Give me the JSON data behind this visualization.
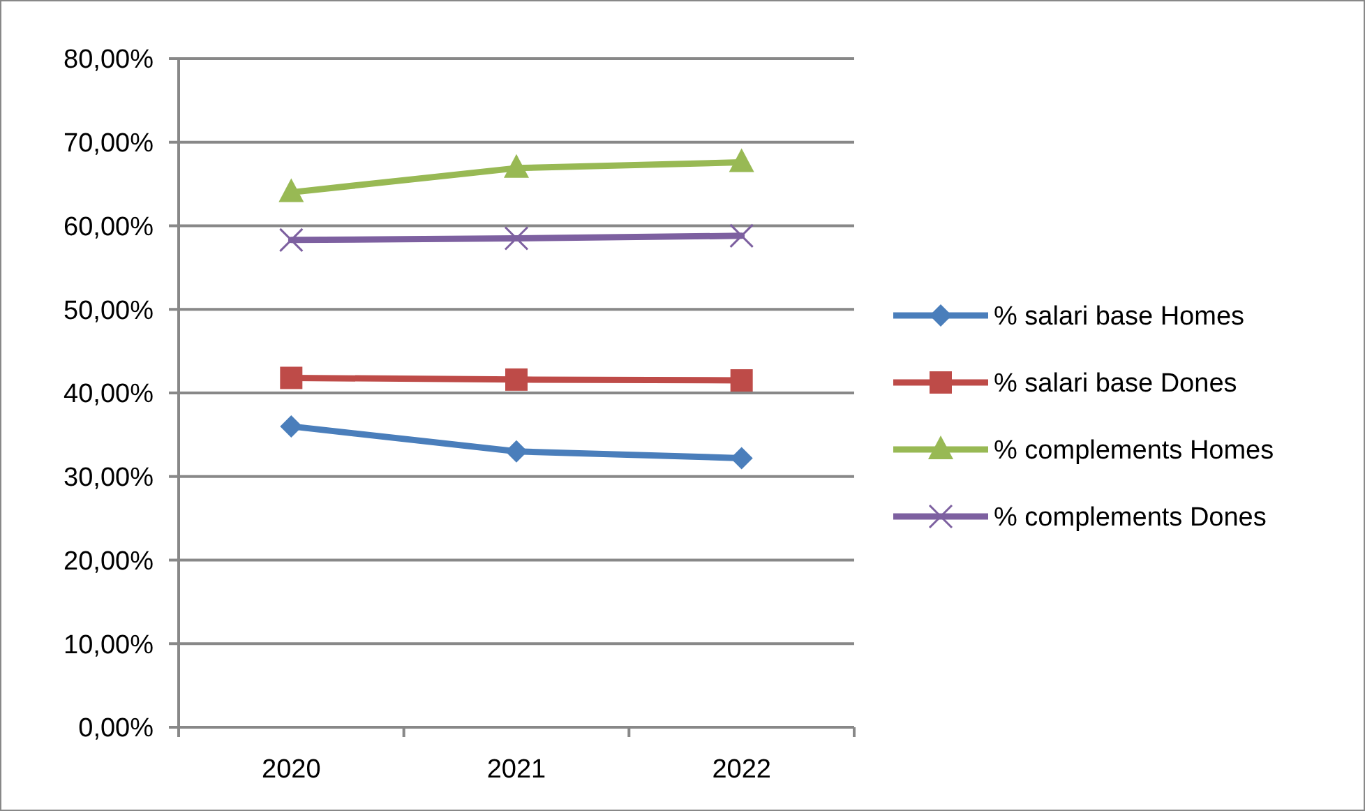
{
  "chart_data": {
    "type": "line",
    "categories": [
      "2020",
      "2021",
      "2022"
    ],
    "series": [
      {
        "name": "% salari base Homes",
        "color": "#4a7ebb",
        "marker": "diamond",
        "values": [
          36.0,
          33.0,
          32.2
        ]
      },
      {
        "name": "% salari base Dones",
        "color": "#be4b48",
        "marker": "square",
        "values": [
          41.8,
          41.6,
          41.5
        ]
      },
      {
        "name": "% complements Homes",
        "color": "#98b954",
        "marker": "triangle",
        "values": [
          64.0,
          66.9,
          67.6
        ]
      },
      {
        "name": "% complements Dones",
        "color": "#7d60a0",
        "marker": "cross",
        "values": [
          58.3,
          58.5,
          58.8
        ]
      }
    ],
    "ylim": [
      0,
      80
    ],
    "yticks": [
      {
        "value": 0,
        "label": "0,00%"
      },
      {
        "value": 10,
        "label": "10,00%"
      },
      {
        "value": 20,
        "label": "20,00%"
      },
      {
        "value": 30,
        "label": "30,00%"
      },
      {
        "value": 40,
        "label": "40,00%"
      },
      {
        "value": 50,
        "label": "50,00%"
      },
      {
        "value": 60,
        "label": "60,00%"
      },
      {
        "value": 70,
        "label": "70,00%"
      },
      {
        "value": 80,
        "label": "80,00%"
      }
    ],
    "grid": "y",
    "legend": "right",
    "line_style": "solid"
  }
}
